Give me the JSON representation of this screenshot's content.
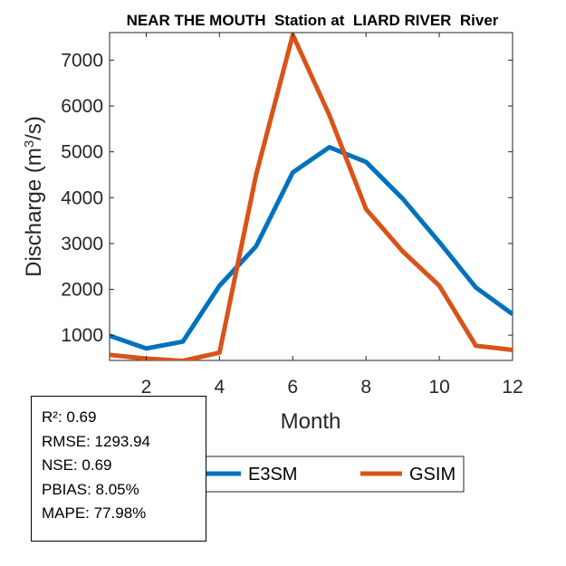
{
  "chart_data": {
    "type": "line",
    "title": "NEAR THE MOUTH  Station at  LIARD RIVER  River",
    "xlabel": "Month",
    "ylabel": "Discharge (m3/s)",
    "ylabel_parts": {
      "prefix": "Discharge (m",
      "sup": "3",
      "suffix": "/s)"
    },
    "xlim": [
      1,
      12
    ],
    "ylim": [
      450,
      7600
    ],
    "xticks": [
      2,
      4,
      6,
      8,
      10,
      12
    ],
    "yticks": [
      1000,
      2000,
      3000,
      4000,
      5000,
      6000,
      7000
    ],
    "x": [
      1,
      2,
      3,
      4,
      5,
      6,
      7,
      8,
      9,
      10,
      11,
      12
    ],
    "series": [
      {
        "name": "E3SM",
        "color": "#0072BD",
        "values": [
          990,
          710,
          860,
          2080,
          2940,
          4550,
          5100,
          4780,
          3980,
          3030,
          2040,
          1460
        ]
      },
      {
        "name": "GSIM",
        "color": "#D95319",
        "values": [
          570,
          490,
          440,
          620,
          4500,
          7550,
          5800,
          3750,
          2830,
          2080,
          770,
          680
        ]
      }
    ],
    "grid": false,
    "legend_position": "bottom-center"
  },
  "stats": {
    "lines": [
      "R²: 0.69",
      "RMSE: 1293.94",
      "NSE: 0.69",
      "PBIAS: 8.05%",
      "MAPE: 77.98%"
    ]
  }
}
